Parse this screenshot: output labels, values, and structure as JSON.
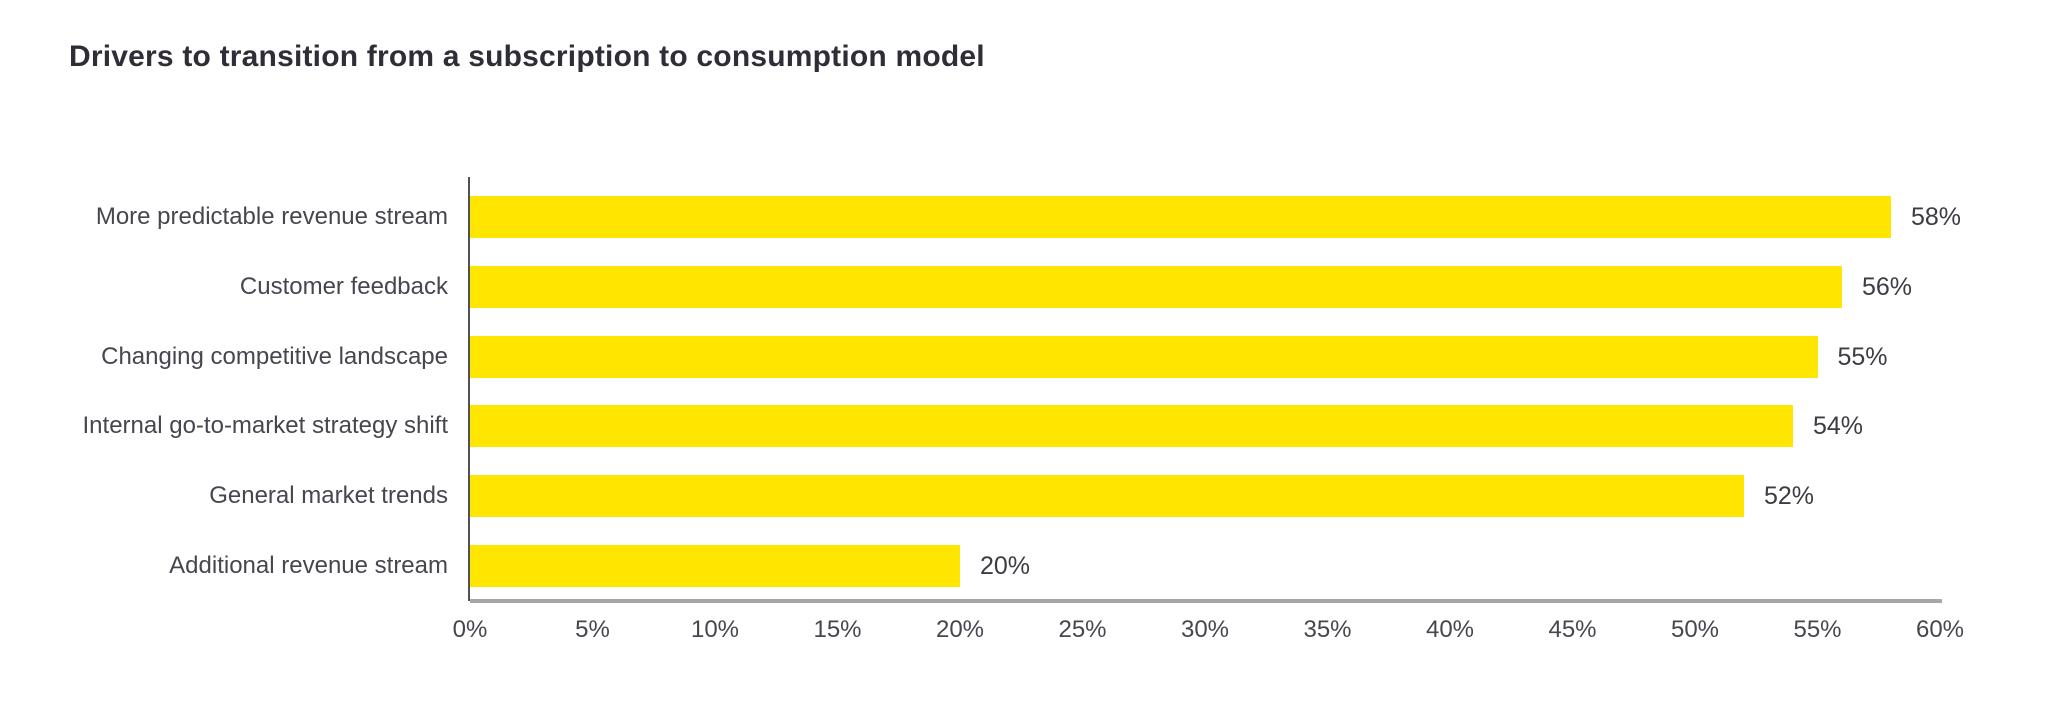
{
  "header": {
    "title": "Drivers to transition from a subscription to consumption model"
  },
  "chart_data": {
    "type": "bar",
    "orientation": "horizontal",
    "title": "Drivers to transition from a subscription to consumption model",
    "categories": [
      "More predictable revenue stream",
      "Customer feedback",
      "Changing competitive landscape",
      "Internal go-to-market strategy shift",
      "General market trends",
      "Additional revenue stream"
    ],
    "values": [
      58,
      56,
      55,
      54,
      52,
      20
    ],
    "value_labels": [
      "58%",
      "56%",
      "55%",
      "54%",
      "52%",
      "20%"
    ],
    "xlabel": "",
    "ylabel": "",
    "xlim": [
      0,
      60
    ],
    "x_tick_values": [
      0,
      5,
      10,
      15,
      20,
      25,
      30,
      35,
      40,
      45,
      50,
      55,
      60
    ],
    "x_tick_labels": [
      "0%",
      "5%",
      "10%",
      "15%",
      "20%",
      "25%",
      "30%",
      "35%",
      "40%",
      "45%",
      "50%",
      "55%",
      "60%"
    ],
    "grid": false,
    "legend_position": "none",
    "data_labels_shown": true
  },
  "colors": {
    "background": "#ffffff",
    "bar": "#FFE600",
    "title_text": "#2e2e38",
    "label_text": "#46464f",
    "value_text": "#3c3c44",
    "tick_text": "#46464f",
    "y_axis_line": "#50505a",
    "x_baseline": "#a6a6a6"
  }
}
